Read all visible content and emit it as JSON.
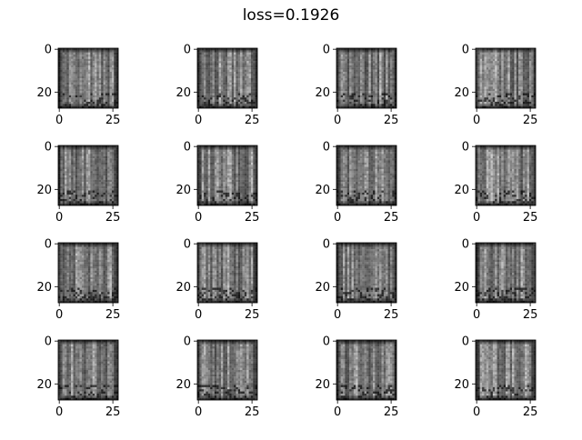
{
  "chart_data": {
    "type": "image_grid",
    "title": "loss=0.1926",
    "rows": 4,
    "cols": 4,
    "image_size": [
      28,
      28
    ],
    "colormap": "gray",
    "xticks": [
      0,
      25
    ],
    "yticks": [
      0,
      20
    ],
    "xlim": [
      -0.5,
      27.5
    ],
    "ylim": [
      27.5,
      -0.5
    ],
    "images": [
      {
        "row": 0,
        "col": 0
      },
      {
        "row": 0,
        "col": 1
      },
      {
        "row": 0,
        "col": 2
      },
      {
        "row": 0,
        "col": 3
      },
      {
        "row": 1,
        "col": 0
      },
      {
        "row": 1,
        "col": 1
      },
      {
        "row": 1,
        "col": 2
      },
      {
        "row": 1,
        "col": 3
      },
      {
        "row": 2,
        "col": 0
      },
      {
        "row": 2,
        "col": 1
      },
      {
        "row": 2,
        "col": 2
      },
      {
        "row": 2,
        "col": 3
      },
      {
        "row": 3,
        "col": 0
      },
      {
        "row": 3,
        "col": 1
      },
      {
        "row": 3,
        "col": 2
      },
      {
        "row": 3,
        "col": 3
      }
    ]
  }
}
